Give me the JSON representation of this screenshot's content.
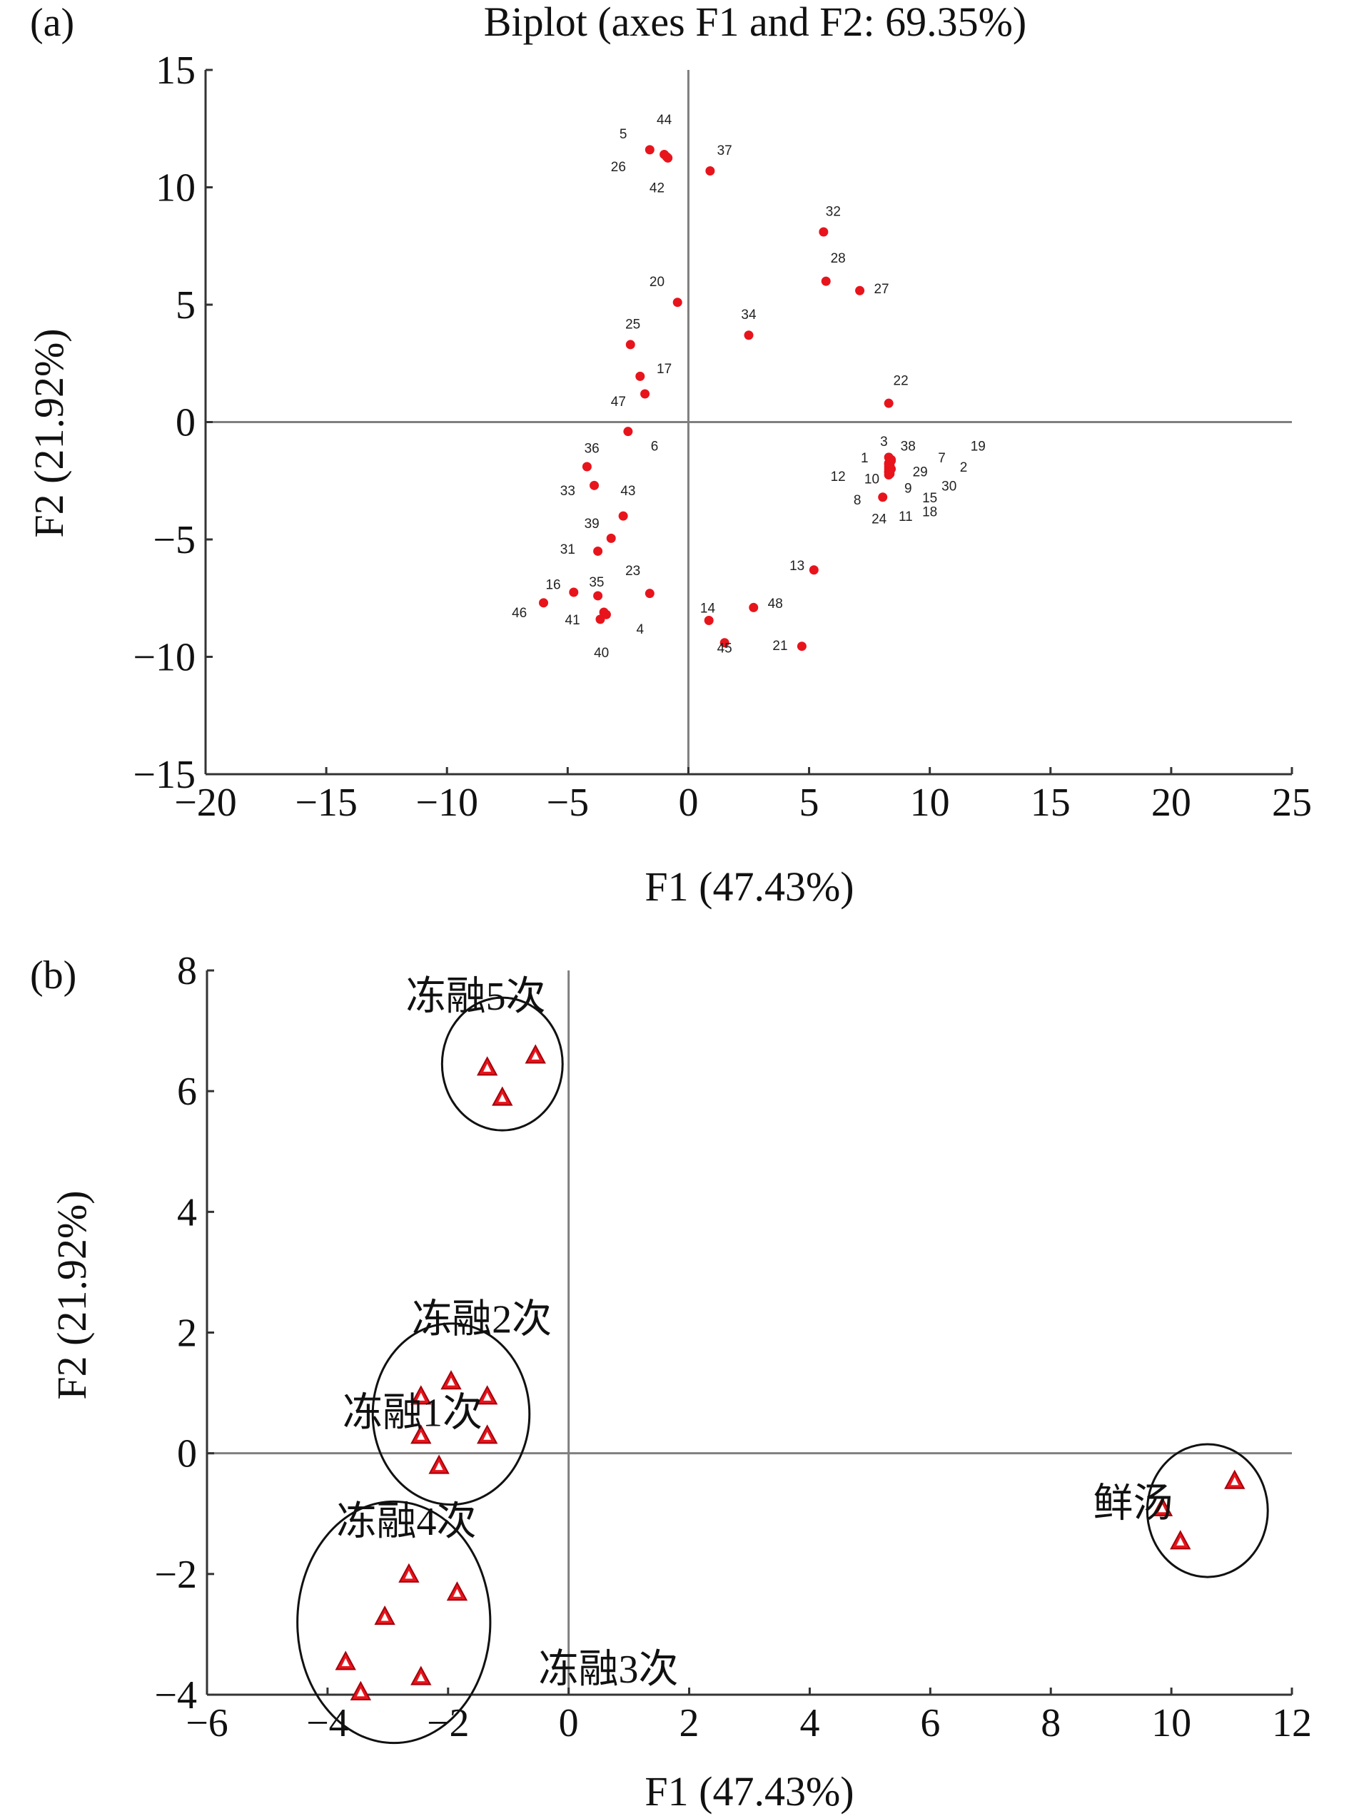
{
  "chart_data": [
    {
      "panel_label": "(a)",
      "type": "scatter",
      "title": "Biplot (axes F1 and F2: 69.35%)",
      "xlabel": "F1 (47.43%)",
      "ylabel": "F2 (21.92%)",
      "xlim": [
        -20,
        25
      ],
      "ylim": [
        -15,
        15
      ],
      "xticks": [
        -20,
        -15,
        -10,
        -5,
        0,
        5,
        10,
        15,
        20,
        25
      ],
      "yticks": [
        -15,
        -10,
        -5,
        0,
        5,
        10,
        15
      ],
      "xtick_labels": [
        "−20",
        "−15",
        "−10",
        "−5",
        "0",
        "5",
        "10",
        "15",
        "20",
        "25"
      ],
      "ytick_labels": [
        "−15",
        "−10",
        "−5",
        "0",
        "5",
        "10",
        "15"
      ],
      "marker_color": "#e8141c",
      "points": [
        {
          "label": "5",
          "x": -1.6,
          "y": 11.6,
          "lx": -2.7,
          "ly": 12.3
        },
        {
          "label": "44",
          "x": -1.0,
          "y": 11.4,
          "lx": -1.0,
          "ly": 12.9
        },
        {
          "label": "26",
          "x": -0.9,
          "y": 11.3,
          "lx": -2.9,
          "ly": 10.9
        },
        {
          "label": "42",
          "x": -0.85,
          "y": 11.25,
          "lx": -1.3,
          "ly": 10.0
        },
        {
          "label": "37",
          "x": 0.9,
          "y": 10.7,
          "lx": 1.5,
          "ly": 11.6
        },
        {
          "label": "32",
          "x": 5.6,
          "y": 8.1,
          "lx": 6.0,
          "ly": 9.0
        },
        {
          "label": "28",
          "x": 5.7,
          "y": 6.0,
          "lx": 6.2,
          "ly": 7.0
        },
        {
          "label": "27",
          "x": 7.1,
          "y": 5.6,
          "lx": 8.0,
          "ly": 5.7
        },
        {
          "label": "20",
          "x": -0.45,
          "y": 5.1,
          "lx": -1.3,
          "ly": 6.0
        },
        {
          "label": "34",
          "x": 2.5,
          "y": 3.7,
          "lx": 2.5,
          "ly": 4.6
        },
        {
          "label": "25",
          "x": -2.4,
          "y": 3.3,
          "lx": -2.3,
          "ly": 4.2
        },
        {
          "label": "17",
          "x": -2.0,
          "y": 1.95,
          "lx": -1.0,
          "ly": 2.3
        },
        {
          "label": "47",
          "x": -1.8,
          "y": 1.2,
          "lx": -2.9,
          "ly": 0.9
        },
        {
          "label": "22",
          "x": 8.3,
          "y": 0.8,
          "lx": 8.8,
          "ly": 1.8
        },
        {
          "label": "6",
          "x": -2.5,
          "y": -0.4,
          "lx": -1.4,
          "ly": -1.0
        },
        {
          "label": "36",
          "x": -4.2,
          "y": -1.9,
          "lx": -4.0,
          "ly": -1.1
        },
        {
          "label": "33",
          "x": -3.9,
          "y": -2.7,
          "lx": -5.0,
          "ly": -2.9
        },
        {
          "label": "43",
          "x": -2.7,
          "y": -4.0,
          "lx": -2.5,
          "ly": -2.9
        },
        {
          "label": "39",
          "x": -3.2,
          "y": -4.95,
          "lx": -4.0,
          "ly": -4.3
        },
        {
          "label": "31",
          "x": -3.75,
          "y": -5.5,
          "lx": -5.0,
          "ly": -5.4
        },
        {
          "label": "16",
          "x": -4.75,
          "y": -7.25,
          "lx": -5.6,
          "ly": -6.9
        },
        {
          "label": "35",
          "x": -3.75,
          "y": -7.4,
          "lx": -3.8,
          "ly": -6.8
        },
        {
          "label": "23",
          "x": -1.6,
          "y": -7.3,
          "lx": -2.3,
          "ly": -6.3
        },
        {
          "label": "46",
          "x": -6.0,
          "y": -7.7,
          "lx": -7.0,
          "ly": -8.1
        },
        {
          "label": "41",
          "x": -3.5,
          "y": -8.1,
          "lx": -4.8,
          "ly": -8.4
        },
        {
          "label": "4",
          "x": -3.4,
          "y": -8.2,
          "lx": -2.0,
          "ly": -8.8
        },
        {
          "label": "40",
          "x": -3.65,
          "y": -8.4,
          "lx": -3.6,
          "ly": -9.8
        },
        {
          "label": "14",
          "x": 0.85,
          "y": -8.45,
          "lx": 0.8,
          "ly": -7.9
        },
        {
          "label": "48",
          "x": 2.7,
          "y": -7.9,
          "lx": 3.6,
          "ly": -7.7
        },
        {
          "label": "13",
          "x": 5.2,
          "y": -6.3,
          "lx": 4.5,
          "ly": -6.1
        },
        {
          "label": "45",
          "x": 1.5,
          "y": -9.4,
          "lx": 1.5,
          "ly": -9.6
        },
        {
          "label": "21",
          "x": 4.7,
          "y": -9.55,
          "lx": 3.8,
          "ly": -9.5
        },
        {
          "label": "3",
          "x": 8.3,
          "y": -1.5,
          "lx": 8.1,
          "ly": -0.8
        },
        {
          "label": "38",
          "x": 8.4,
          "y": -1.6,
          "lx": 9.1,
          "ly": -1.0
        },
        {
          "label": "1",
          "x": 8.35,
          "y": -1.7,
          "lx": 7.3,
          "ly": -1.5
        },
        {
          "label": "7",
          "x": 8.3,
          "y": -1.75,
          "lx": 10.5,
          "ly": -1.5
        },
        {
          "label": "19",
          "x": 8.4,
          "y": -1.65,
          "lx": 12.0,
          "ly": -1.0
        },
        {
          "label": "12",
          "x": 8.3,
          "y": -1.8,
          "lx": 6.2,
          "ly": -2.3
        },
        {
          "label": "10",
          "x": 8.35,
          "y": -1.85,
          "lx": 7.6,
          "ly": -2.4
        },
        {
          "label": "29",
          "x": 8.3,
          "y": -1.9,
          "lx": 9.6,
          "ly": -2.1
        },
        {
          "label": "2",
          "x": 8.35,
          "y": -1.95,
          "lx": 11.4,
          "ly": -1.9
        },
        {
          "label": "9",
          "x": 8.3,
          "y": -2.0,
          "lx": 9.1,
          "ly": -2.8
        },
        {
          "label": "30",
          "x": 8.4,
          "y": -2.0,
          "lx": 10.8,
          "ly": -2.7
        },
        {
          "label": "8",
          "x": 8.05,
          "y": -3.2,
          "lx": 7.0,
          "ly": -3.3
        },
        {
          "label": "15",
          "x": 8.3,
          "y": -2.1,
          "lx": 10.0,
          "ly": -3.2
        },
        {
          "label": "24",
          "x": 8.3,
          "y": -2.15,
          "lx": 7.9,
          "ly": -4.1
        },
        {
          "label": "11",
          "x": 8.35,
          "y": -2.2,
          "lx": 9.0,
          "ly": -4.0
        },
        {
          "label": "18",
          "x": 8.3,
          "y": -2.25,
          "lx": 10.0,
          "ly": -3.8
        }
      ]
    },
    {
      "panel_label": "(b)",
      "type": "scatter",
      "title": "",
      "xlabel": "F1 (47.43%)",
      "ylabel": "F2 (21.92%)",
      "xlim": [
        -6,
        12
      ],
      "ylim": [
        -4,
        8
      ],
      "xticks": [
        -6,
        -4,
        -2,
        0,
        2,
        4,
        6,
        8,
        10,
        12
      ],
      "yticks": [
        -4,
        -2,
        0,
        2,
        4,
        6,
        8
      ],
      "xtick_labels": [
        "−6",
        "−4",
        "−2",
        "0",
        "2",
        "4",
        "6",
        "8",
        "10",
        "12"
      ],
      "ytick_labels": [
        "−4",
        "−2",
        "0",
        "2",
        "4",
        "6",
        "8"
      ],
      "marker_color": "#e8141c",
      "groups": [
        {
          "name": "冻融5次",
          "label_pos": [
            -2.7,
            7.35
          ],
          "ellipse": {
            "cx": -1.1,
            "cy": 6.45,
            "rx": 1.0,
            "ry": 1.1,
            "angle": 0
          },
          "points": [
            [
              -1.35,
              6.4
            ],
            [
              -0.55,
              6.6
            ],
            [
              -1.1,
              5.9
            ]
          ]
        },
        {
          "name": "冻融2次",
          "label_pos": [
            -2.6,
            2.0
          ],
          "ellipse": {
            "cx": -1.95,
            "cy": 0.65,
            "rx": 1.3,
            "ry": 1.5,
            "angle": 0
          },
          "points": [
            [
              -2.45,
              0.95
            ],
            [
              -1.95,
              1.2
            ],
            [
              -1.35,
              0.95
            ]
          ]
        },
        {
          "name": "冻融1次",
          "label_pos": [
            -3.75,
            0.45
          ],
          "ellipse": null,
          "points": [
            [
              -2.45,
              0.3
            ],
            [
              -1.35,
              0.3
            ],
            [
              -2.15,
              -0.2
            ]
          ]
        },
        {
          "name": "冻融4次",
          "label_pos": [
            -3.85,
            -1.35
          ],
          "ellipse": null,
          "points": [
            [
              -2.65,
              -2.0
            ],
            [
              -1.85,
              -2.3
            ],
            [
              -3.05,
              -2.7
            ],
            [
              -3.7,
              -3.45
            ],
            [
              -2.45,
              -3.7
            ],
            [
              -3.45,
              -3.95
            ]
          ]
        },
        {
          "name": "冻融3次",
          "label_pos": [
            -0.5,
            -3.8
          ],
          "ellipse": {
            "cx": -2.9,
            "cy": -2.8,
            "rx": 1.6,
            "ry": 2.0,
            "angle": 0
          },
          "points": []
        },
        {
          "name": "鲜汤",
          "label_pos": [
            8.7,
            -1.05
          ],
          "ellipse": {
            "cx": 10.6,
            "cy": -0.95,
            "rx": 1.0,
            "ry": 1.1,
            "angle": 0
          },
          "points": [
            [
              9.85,
              -0.9
            ],
            [
              11.05,
              -0.45
            ],
            [
              10.15,
              -1.45
            ]
          ]
        }
      ]
    }
  ]
}
